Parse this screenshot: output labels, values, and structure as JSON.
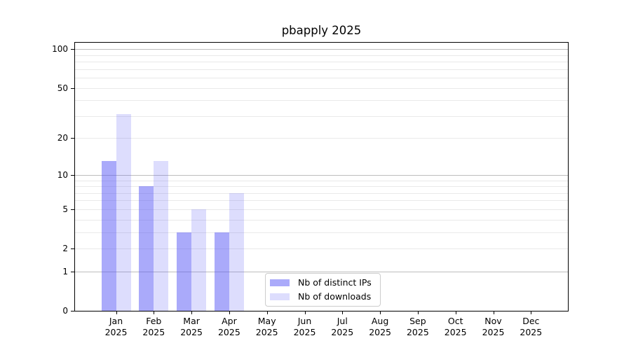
{
  "window": {
    "background": "#ffffff"
  },
  "chart_data": {
    "type": "bar",
    "title": "pbapply 2025",
    "xlabel": "",
    "ylabel": "",
    "categories": [
      "Jan",
      "Feb",
      "Mar",
      "Apr",
      "May",
      "Jun",
      "Jul",
      "Aug",
      "Sep",
      "Oct",
      "Nov",
      "Dec"
    ],
    "year_label": "2025",
    "series": [
      {
        "name": "Nb of distinct IPs",
        "color": "#5555f5",
        "alpha": 0.5,
        "values": [
          13,
          8,
          3,
          3,
          0,
          0,
          0,
          0,
          0,
          0,
          0,
          0
        ]
      },
      {
        "name": "Nb of downloads",
        "color": "#5555f5",
        "alpha": 0.2,
        "values": [
          31,
          13,
          5,
          7,
          0,
          0,
          0,
          0,
          0,
          0,
          0,
          0
        ]
      }
    ],
    "yscale": "log1p",
    "ylim": [
      0,
      112
    ],
    "ytick_labels": [
      100,
      50,
      20,
      10,
      5,
      2,
      1,
      0
    ],
    "grid": {
      "major": [
        1,
        10,
        100
      ],
      "minor": [
        2,
        3,
        4,
        5,
        6,
        7,
        8,
        9,
        20,
        30,
        40,
        50,
        60,
        70,
        80,
        90
      ],
      "major_color": "#bdbdbd",
      "minor_color": "#e9e9e9"
    },
    "legend": {
      "position": "lower center, inside plot"
    },
    "axes": {
      "spine_color": "#000000",
      "tick_color": "#000000",
      "text_color": "#000000"
    }
  }
}
